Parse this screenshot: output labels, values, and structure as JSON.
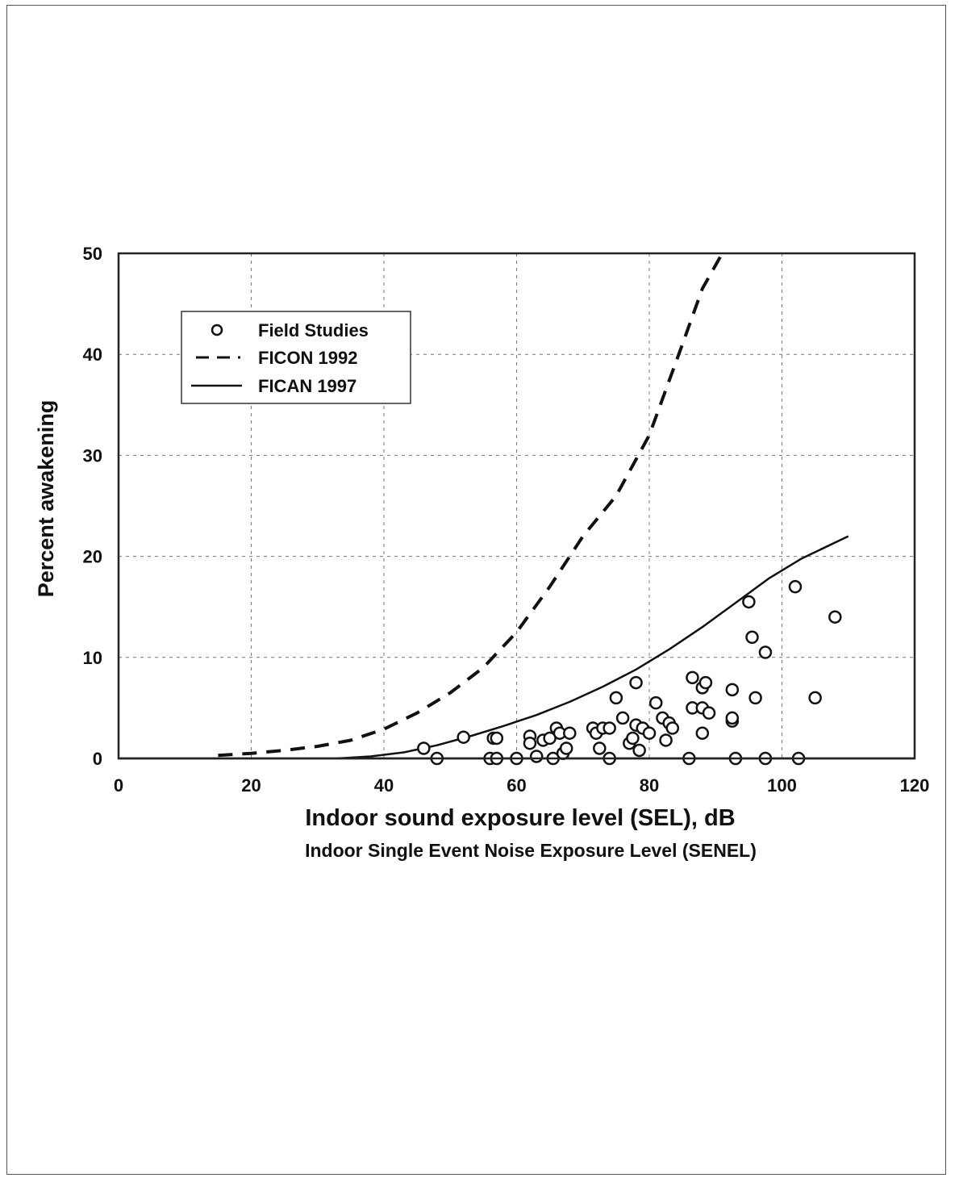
{
  "chart_data": {
    "type": "scatter",
    "title": "",
    "xlabel": "Indoor sound exposure level (SEL), dB",
    "xlabel_secondary": "Indoor Single Event Noise Exposure Level (SENEL)",
    "ylabel": "Percent awakening",
    "xlim": [
      0,
      120
    ],
    "ylim": [
      0,
      50
    ],
    "x_ticks": [
      0,
      20,
      40,
      60,
      80,
      100,
      120
    ],
    "y_ticks": [
      0,
      10,
      20,
      30,
      40,
      50
    ],
    "grid": true,
    "legend_position": "top-left",
    "series": [
      {
        "name": "Field Studies",
        "style": "open-circle",
        "points": [
          [
            46,
            1
          ],
          [
            48,
            0
          ],
          [
            52,
            2.1
          ],
          [
            56,
            0
          ],
          [
            56.5,
            2
          ],
          [
            57,
            2
          ],
          [
            57,
            0
          ],
          [
            60,
            0
          ],
          [
            62,
            2.2
          ],
          [
            62,
            1.5
          ],
          [
            63,
            0.2
          ],
          [
            64,
            1.8
          ],
          [
            65,
            2
          ],
          [
            65.5,
            0
          ],
          [
            66,
            3
          ],
          [
            66.5,
            2.5
          ],
          [
            67,
            0.5
          ],
          [
            67.5,
            1
          ],
          [
            68,
            2.5
          ],
          [
            71.5,
            3
          ],
          [
            72,
            2.5
          ],
          [
            72.5,
            1
          ],
          [
            73,
            3
          ],
          [
            74,
            3
          ],
          [
            74,
            0
          ],
          [
            75,
            6
          ],
          [
            76,
            4
          ],
          [
            77,
            1.5
          ],
          [
            77.5,
            2
          ],
          [
            78,
            3.3
          ],
          [
            78,
            7.5
          ],
          [
            78.5,
            0.8
          ],
          [
            79,
            3
          ],
          [
            80,
            2.5
          ],
          [
            81,
            5.5
          ],
          [
            82,
            4
          ],
          [
            82.5,
            1.8
          ],
          [
            83,
            3.5
          ],
          [
            83.5,
            3
          ],
          [
            86,
            0
          ],
          [
            86.5,
            8
          ],
          [
            86.5,
            5
          ],
          [
            88,
            2.5
          ],
          [
            88,
            5
          ],
          [
            88,
            7
          ],
          [
            88.5,
            7.5
          ],
          [
            89,
            4.5
          ],
          [
            92.5,
            3.7
          ],
          [
            92.5,
            4
          ],
          [
            92.5,
            6.8
          ],
          [
            93,
            0
          ],
          [
            95,
            15.5
          ],
          [
            95.5,
            12
          ],
          [
            96,
            6
          ],
          [
            97.5,
            10.5
          ],
          [
            97.5,
            0
          ],
          [
            102,
            17
          ],
          [
            102.5,
            0
          ],
          [
            105,
            6
          ],
          [
            108,
            14
          ]
        ]
      },
      {
        "name": "FICON 1992",
        "style": "dashed",
        "points": [
          [
            15,
            0.3
          ],
          [
            20,
            0.5
          ],
          [
            25,
            0.8
          ],
          [
            30,
            1.2
          ],
          [
            35,
            1.8
          ],
          [
            40,
            2.9
          ],
          [
            45,
            4.5
          ],
          [
            50,
            6.5
          ],
          [
            55,
            9
          ],
          [
            60,
            12.5
          ],
          [
            65,
            17
          ],
          [
            70,
            22
          ],
          [
            75,
            26
          ],
          [
            80,
            32
          ],
          [
            85,
            41
          ],
          [
            88,
            46.5
          ],
          [
            91,
            51
          ]
        ]
      },
      {
        "name": "FICAN 1997",
        "style": "solid",
        "points": [
          [
            33,
            0
          ],
          [
            38,
            0.2
          ],
          [
            43,
            0.6
          ],
          [
            48,
            1.3
          ],
          [
            53,
            2.2
          ],
          [
            58,
            3.2
          ],
          [
            63,
            4.3
          ],
          [
            68,
            5.6
          ],
          [
            73,
            7.1
          ],
          [
            78,
            8.8
          ],
          [
            83,
            10.8
          ],
          [
            88,
            13
          ],
          [
            93,
            15.4
          ],
          [
            98,
            17.8
          ],
          [
            103,
            19.8
          ],
          [
            110,
            22
          ]
        ]
      }
    ]
  }
}
